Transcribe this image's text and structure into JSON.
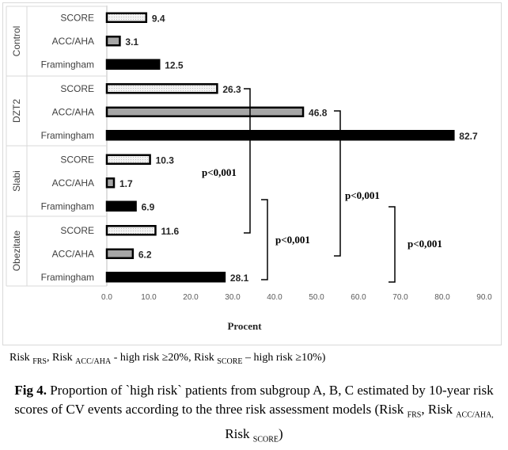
{
  "chart_data": {
    "type": "bar",
    "orientation": "horizontal",
    "groups": [
      {
        "name": "Control",
        "bars": [
          {
            "label": "SCORE",
            "value": 9.4,
            "value_label": "9.4"
          },
          {
            "label": "ACC/AHA",
            "value": 3.1,
            "value_label": "3.1"
          },
          {
            "label": "Framingham",
            "value": 12.5,
            "value_label": "12.5"
          }
        ]
      },
      {
        "name": "DZT2",
        "bars": [
          {
            "label": "SCORE",
            "value": 26.3,
            "value_label": "26.3"
          },
          {
            "label": "ACC/AHA",
            "value": 46.8,
            "value_label": "46.8"
          },
          {
            "label": "Framingham",
            "value": 82.7,
            "value_label": "82.7"
          }
        ]
      },
      {
        "name": "Slabi",
        "bars": [
          {
            "label": "SCORE",
            "value": 10.3,
            "value_label": "10.3"
          },
          {
            "label": "ACC/AHA",
            "value": 1.7,
            "value_label": "1.7"
          },
          {
            "label": "Framingham",
            "value": 6.9,
            "value_label": "6.9"
          }
        ]
      },
      {
        "name": "Obezitate",
        "bars": [
          {
            "label": "SCORE",
            "value": 11.6,
            "value_label": "11.6"
          },
          {
            "label": "ACC/AHA",
            "value": 6.2,
            "value_label": "6.2"
          },
          {
            "label": "Framingham",
            "value": 28.1,
            "value_label": "28.1"
          }
        ]
      }
    ],
    "xlabel": "Procent",
    "xlim": [
      0,
      90
    ],
    "xticks": [
      "0.0",
      "10.0",
      "20.0",
      "30.0",
      "40.0",
      "50.0",
      "60.0",
      "70.0",
      "80.0",
      "90.0"
    ],
    "series_colors": {
      "SCORE": "#f2f2f2",
      "ACC/AHA": "#a6a6a6",
      "Framingham": "#000000"
    },
    "annotations": [
      "p<0,001",
      "p<0,001",
      "p<0,001"
    ],
    "grid": false
  },
  "footnote": {
    "parts": [
      "Risk ",
      "FRS",
      ", Risk ",
      "ACC/AHA",
      " - high  risk ≥20%, Risk ",
      "SCORE",
      " – high  risk ≥10%)"
    ]
  },
  "caption": {
    "label": "Fig 4.",
    "text": " Proportion of `high risk` patients from subgroup A, B, C estimated by 10-year risk scores of CV events according to the three risk assessment models (Risk ",
    "sub1": "FRS",
    "sep1": ", Risk ",
    "sub2": "ACC/AHA,",
    "sep2": " Risk ",
    "sub3": "SCORE",
    "end": ")"
  }
}
